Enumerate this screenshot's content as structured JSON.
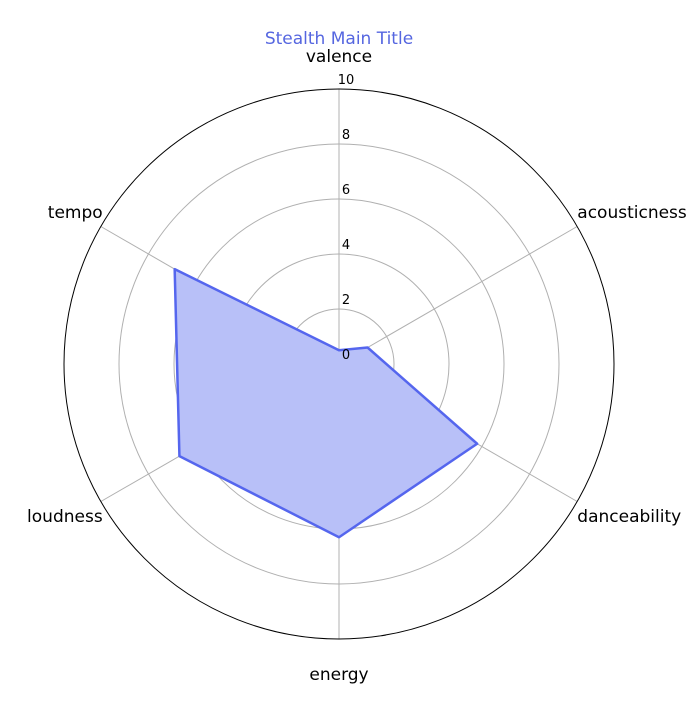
{
  "chart_data": {
    "type": "radar",
    "title": "Stealth Main Title",
    "axes": [
      "valence",
      "acousticness",
      "danceability",
      "energy",
      "loudness",
      "tempo"
    ],
    "rlim": [
      0,
      10
    ],
    "rticks": [
      "0",
      "2",
      "4",
      "6",
      "8",
      "10"
    ],
    "series": [
      {
        "values": [
          0.5,
          1.2,
          5.8,
          6.3,
          6.7,
          6.9
        ]
      }
    ],
    "grid": true
  },
  "colors": {
    "title": "#5566e0",
    "line": "#5566ee",
    "fill": "#b8c0f8",
    "grid": "#b0b0b0",
    "frame": "#000000"
  }
}
